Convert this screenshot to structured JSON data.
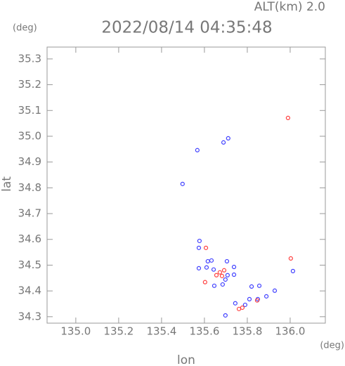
{
  "chart_data": {
    "type": "scatter",
    "title": "2022/08/14 04:35:48",
    "subtitle": "ALT(km) 2.0",
    "y_unit": "(deg)",
    "x_unit": "(deg)",
    "x_label": "lon",
    "y_label": "lat",
    "xlim": [
      134.866,
      136.164
    ],
    "ylim": [
      34.275,
      35.346
    ],
    "xticks": [
      {
        "value": 135,
        "label": "135.0"
      },
      135.2,
      135.4,
      135.6,
      135.8,
      {
        "value": 136,
        "label": "136.0"
      }
    ],
    "yticks": [
      34.3,
      34.4,
      34.5,
      34.6,
      34.7,
      34.8,
      34.9,
      {
        "value": 35,
        "label": "35.0"
      },
      35.1,
      35.2,
      35.3
    ],
    "series": [
      {
        "color": "#4040ff",
        "x": [
          135.498,
          135.567,
          135.689,
          135.711,
          135.577,
          135.574,
          135.616,
          135.633,
          135.705,
          135.574,
          135.61,
          135.643,
          135.698,
          135.708,
          135.738,
          135.738,
          135.646,
          135.685,
          135.82,
          135.856,
          135.81,
          135.849,
          135.889,
          135.928,
          136.013,
          135.744,
          135.79,
          135.698
        ],
        "values": [
          34.815,
          34.946,
          34.976,
          34.992,
          34.594,
          34.567,
          34.515,
          34.518,
          34.515,
          34.488,
          34.491,
          34.483,
          34.444,
          34.461,
          34.463,
          34.493,
          34.42,
          34.425,
          34.417,
          34.42,
          34.368,
          34.368,
          34.379,
          34.401,
          34.477,
          34.352,
          34.346,
          34.305
        ]
      },
      {
        "color": "#ff4040",
        "x": [
          135.99,
          135.607,
          135.672,
          135.692,
          135.656,
          135.682,
          135.603,
          136.003,
          135.777,
          135.761,
          135.846
        ],
        "values": [
          35.071,
          34.567,
          34.472,
          34.48,
          34.461,
          34.458,
          34.434,
          34.526,
          34.335,
          34.33,
          34.363
        ]
      }
    ]
  }
}
